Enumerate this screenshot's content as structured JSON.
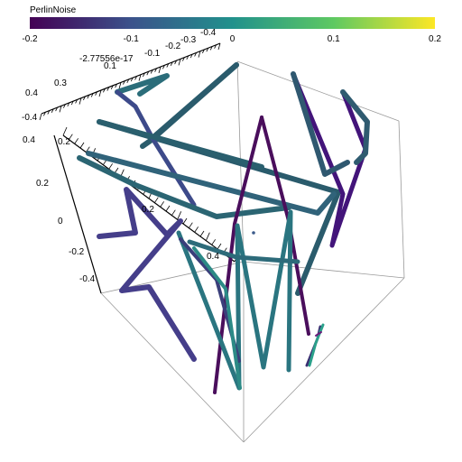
{
  "colorbar": {
    "title": "PerlinNoise",
    "ticks": [
      "-0.2",
      "-0.1",
      "0",
      "0.1",
      "0.2"
    ],
    "colors": [
      "#440154",
      "#3b528b",
      "#21918c",
      "#5ec962",
      "#fde725"
    ]
  },
  "axis_labels": {
    "top": [
      "-0.4",
      "-0.3",
      "-0.2",
      "-0.1",
      "-2.77556e-17",
      "0.1"
    ],
    "left_upper": [
      "0.4",
      "0.3",
      "0.2"
    ],
    "left": [
      "0.4",
      "0.2",
      "0",
      "-0.2",
      "-0.4"
    ],
    "center": [
      "0.2",
      "0.4"
    ],
    "left_edge": [
      "-0.4"
    ]
  },
  "colors": {
    "teal": "#2b5f6e",
    "teal_light": "#2a7f86",
    "purple": "#4b0c5e",
    "violet": "#453b89",
    "edge": "#9a9a9a",
    "axis": "#000000"
  }
}
